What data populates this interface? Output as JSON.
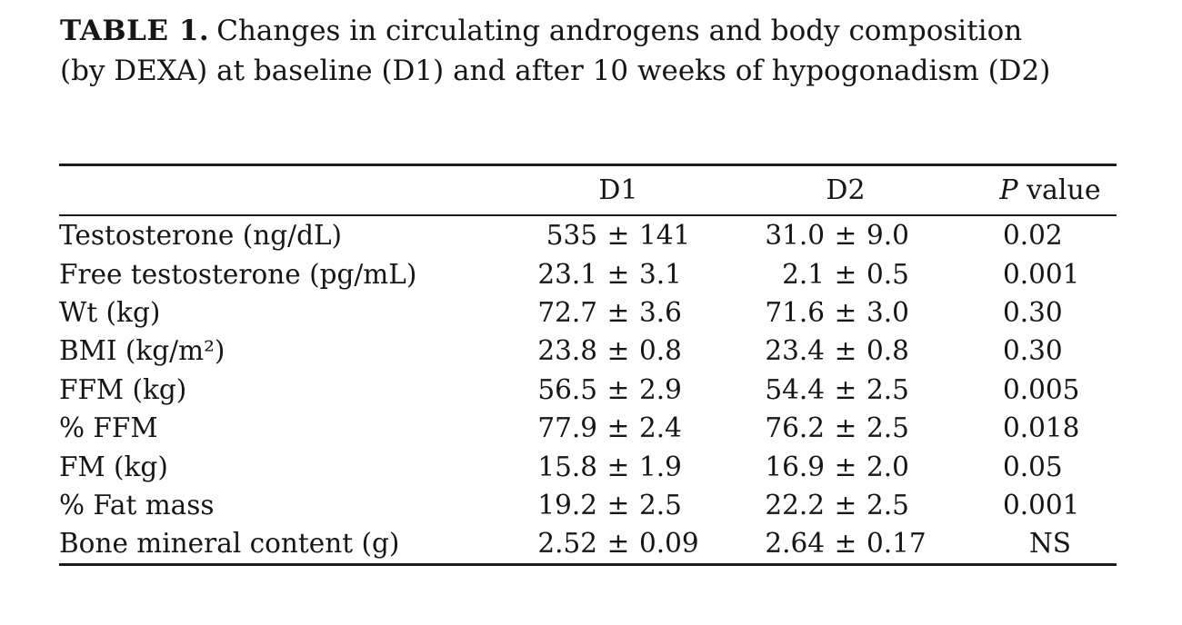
{
  "caption": {
    "label": "TABLE 1.",
    "text": "Changes in circulating androgens and body composition (by DEXA) at baseline (D1) and after 10 weeks of hypogonadism (D2)"
  },
  "table": {
    "plus_minus": "±",
    "columns": {
      "d1": "D1",
      "d2": "D2",
      "p_italic": "P",
      "p_rest": " value"
    },
    "rows": [
      {
        "label": "Testosterone (ng/dL)",
        "d1_mean": "535",
        "d1_sd": "141",
        "d2_mean": "31.0",
        "d2_sd": "9.0",
        "p": "0.02"
      },
      {
        "label": "Free testosterone (pg/mL)",
        "d1_mean": "23.1",
        "d1_sd": "3.1",
        "d2_mean": "2.1",
        "d2_sd": "0.5",
        "p": "0.001"
      },
      {
        "label": "Wt (kg)",
        "d1_mean": "72.7",
        "d1_sd": "3.6",
        "d2_mean": "71.6",
        "d2_sd": "3.0",
        "p": "0.30"
      },
      {
        "label": "BMI (kg/m²)",
        "d1_mean": "23.8",
        "d1_sd": "0.8",
        "d2_mean": "23.4",
        "d2_sd": "0.8",
        "p": "0.30"
      },
      {
        "label": "FFM (kg)",
        "d1_mean": "56.5",
        "d1_sd": "2.9",
        "d2_mean": "54.4",
        "d2_sd": "2.5",
        "p": "0.005"
      },
      {
        "label": "% FFM",
        "d1_mean": "77.9",
        "d1_sd": "2.4",
        "d2_mean": "76.2",
        "d2_sd": "2.5",
        "p": "0.018"
      },
      {
        "label": "FM (kg)",
        "d1_mean": "15.8",
        "d1_sd": "1.9",
        "d2_mean": "16.9",
        "d2_sd": "2.0",
        "p": "0.05"
      },
      {
        "label": "% Fat mass",
        "d1_mean": "19.2",
        "d1_sd": "2.5",
        "d2_mean": "22.2",
        "d2_sd": "2.5",
        "p": "0.001"
      },
      {
        "label": "Bone mineral content (g)",
        "d1_mean": "2.52",
        "d1_sd": "0.09",
        "d2_mean": "2.64",
        "d2_sd": "0.17",
        "p": "NS"
      }
    ],
    "not_significant_value": "NS"
  },
  "colors": {
    "text": "#161616",
    "rule": "#1c1c1c",
    "background": "#ffffff"
  }
}
